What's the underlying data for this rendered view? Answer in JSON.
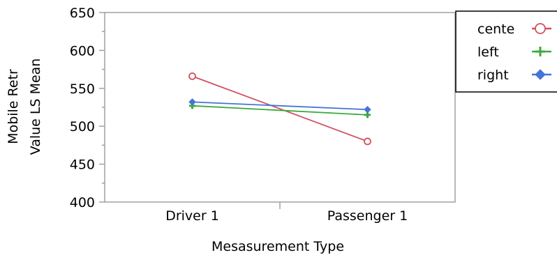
{
  "chart_data": {
    "type": "line",
    "title": "",
    "xlabel": "Mesasurement Type",
    "ylabel_lines": [
      "Mobile Retr",
      "Value LS Mean"
    ],
    "categories": [
      "Driver 1",
      "Passenger 1"
    ],
    "ylim": [
      400,
      650
    ],
    "yticks": [
      400,
      450,
      500,
      550,
      600,
      650
    ],
    "grid": false,
    "legend_position": "top-right",
    "series": [
      {
        "name": "cente",
        "values": [
          566,
          480
        ],
        "color": "#d0505f",
        "marker": "circle"
      },
      {
        "name": "left",
        "values": [
          527,
          515
        ],
        "color": "#3caa3c",
        "marker": "plus"
      },
      {
        "name": "right",
        "values": [
          532,
          522
        ],
        "color": "#4673d6",
        "marker": "diamond"
      }
    ]
  }
}
